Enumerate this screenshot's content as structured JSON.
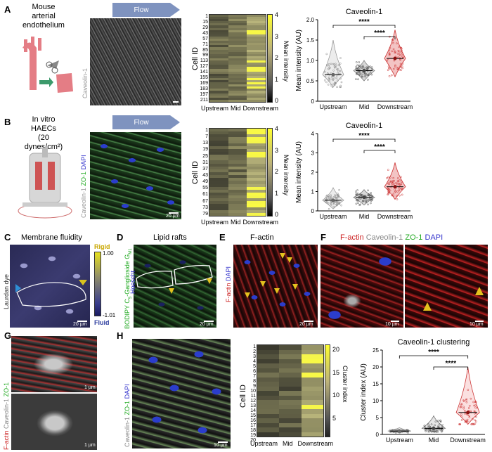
{
  "panels": {
    "A": {
      "label": "A",
      "subtitle_line1": "Mouse",
      "subtitle_line2": "arterial",
      "subtitle_line3": "endothelium",
      "flow": "Flow",
      "image_stain": "Caveolin-1",
      "heatmap": {
        "ylabel": "Cell ID",
        "yticks": [
          "1",
          "15",
          "29",
          "43",
          "57",
          "71",
          "85",
          "99",
          "113",
          "127",
          "141",
          "155",
          "169",
          "183",
          "197",
          "211"
        ],
        "xticks": [
          "Upstream",
          "Mid",
          "Downstream"
        ],
        "colorbar_label": "Mean intensity",
        "colorbar_ticks": [
          "4",
          "3",
          "2",
          "1",
          "0"
        ]
      }
    },
    "B": {
      "label": "B",
      "subtitle_line1": "In vitro",
      "subtitle_line2": "HAECs",
      "subtitle_line3": "(20 dynes/cm²)",
      "flow": "Flow",
      "image_stain_1": "Caveolin-1",
      "image_stain_2": "ZO-1",
      "image_stain_3": "DAPI",
      "scalebar": "20 µm",
      "heatmap": {
        "ylabel": "Cell ID",
        "yticks": [
          "1",
          "7",
          "13",
          "19",
          "25",
          "31",
          "37",
          "43",
          "49",
          "55",
          "61",
          "67",
          "73",
          "79"
        ],
        "xticks": [
          "Upstream",
          "Mid",
          "Downstream"
        ],
        "colorbar_label": "Mean intensity",
        "colorbar_ticks": [
          "4",
          "3",
          "2",
          "1",
          "0"
        ]
      }
    },
    "C": {
      "label": "C",
      "title": "Membrane fluidity",
      "stain": "Laurdan dye",
      "cb_top_label": "Rigid",
      "cb_bottom_label": "Fluid",
      "cb_top": "1.00",
      "cb_bottom": "-1.01",
      "scalebar": "20 µm"
    },
    "D": {
      "label": "D",
      "title": "Lipid rafts",
      "stain_1": "BODIPY C",
      "stain_2": "-Ganglioside G",
      "stain_3": "Hoescht",
      "scalebar": "20 µm"
    },
    "E": {
      "label": "E",
      "title": "F-actin",
      "stain_1": "F-actin",
      "stain_2": "DAPI",
      "scalebar": "20 µm"
    },
    "F": {
      "label": "F",
      "title_1": "F-actin",
      "title_2": "Caveolin-1",
      "title_3": "ZO-1",
      "title_4": "DAPI",
      "scalebar_1": "10 µm",
      "scalebar_2": "10 µm"
    },
    "G": {
      "label": "G",
      "stain_1": "F-actin",
      "stain_2": "Caveolin-1",
      "stain_3": "ZO-1",
      "scalebar_1": "1 µm",
      "scalebar_2": "1 µm"
    },
    "H": {
      "label": "H",
      "stain_1": "Caveolin-1",
      "stain_2": "ZO-1",
      "stain_3": "DAPI",
      "scalebar": "10 µm",
      "heatmap": {
        "ylabel": "Cell ID",
        "yticks": [
          "1",
          "2",
          "3",
          "4",
          "5",
          "6",
          "7",
          "8",
          "9",
          "10",
          "11",
          "12",
          "13",
          "14",
          "15",
          "16",
          "17",
          "18",
          "19",
          "20"
        ],
        "xticks": [
          "Upstream",
          "Mid",
          "Downstream"
        ],
        "colorbar_label": "Cluster index",
        "colorbar_ticks": [
          "20",
          "15",
          "10",
          "5"
        ]
      }
    }
  },
  "chart_data": [
    {
      "type": "scatter",
      "title": "Caveolin-1",
      "ylabel": "Mean intensity (AU)",
      "categories": [
        "Upstream",
        "Mid",
        "Downstream"
      ],
      "ylim": [
        0,
        2
      ],
      "yticks": [
        0,
        0.5,
        1.0,
        1.5,
        2.0
      ],
      "medians": [
        0.65,
        0.75,
        1.05
      ],
      "spread": [
        [
          0.35,
          1.5
        ],
        [
          0.5,
          1.0
        ],
        [
          0.6,
          1.75
        ]
      ],
      "significance": [
        {
          "pair": [
            "Upstream",
            "Downstream"
          ],
          "label": "****"
        },
        {
          "pair": [
            "Mid",
            "Downstream"
          ],
          "label": "****"
        }
      ]
    },
    {
      "type": "scatter",
      "title": "Caveolin-1",
      "ylabel": "Mean intensity (AU)",
      "categories": [
        "Upstream",
        "Mid",
        "Downstream"
      ],
      "ylim": [
        0,
        4
      ],
      "yticks": [
        0,
        1,
        2,
        3,
        4
      ],
      "medians": [
        0.55,
        0.7,
        1.25
      ],
      "spread": [
        [
          0.1,
          1.2
        ],
        [
          0.3,
          1.1
        ],
        [
          0.6,
          2.5
        ]
      ],
      "significance": [
        {
          "pair": [
            "Upstream",
            "Downstream"
          ],
          "label": "****"
        },
        {
          "pair": [
            "Mid",
            "Downstream"
          ],
          "label": "****"
        }
      ]
    },
    {
      "type": "scatter",
      "title": "Caveolin-1 clustering",
      "ylabel": "Cluster index (AU)",
      "categories": [
        "Upstream",
        "Mid",
        "Downstream"
      ],
      "ylim": [
        0,
        25
      ],
      "yticks": [
        0,
        5,
        10,
        15,
        20,
        25
      ],
      "medians": [
        1.0,
        1.8,
        6.5
      ],
      "spread": [
        [
          0.5,
          2.0
        ],
        [
          0.8,
          5.5
        ],
        [
          3.0,
          20.0
        ]
      ],
      "significance": [
        {
          "pair": [
            "Upstream",
            "Downstream"
          ],
          "label": "****"
        },
        {
          "pair": [
            "Mid",
            "Downstream"
          ],
          "label": "****"
        }
      ]
    }
  ]
}
